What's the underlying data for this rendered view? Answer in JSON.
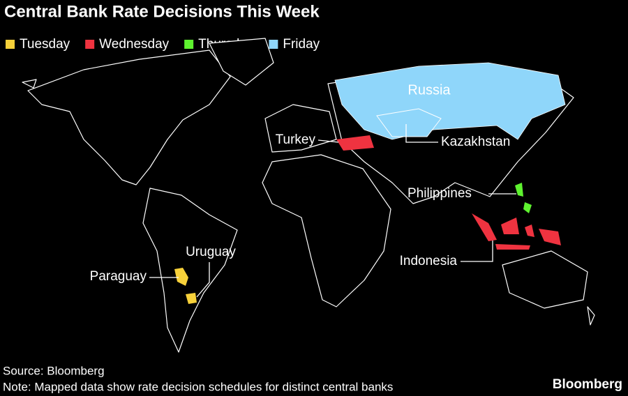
{
  "title": "Central Bank Rate Decisions This Week",
  "legend": [
    {
      "label": "Tuesday",
      "color": "#f7d13a"
    },
    {
      "label": "Wednesday",
      "color": "#ef3340"
    },
    {
      "label": "Thursday",
      "color": "#5ef22f"
    },
    {
      "label": "Friday",
      "color": "#8fd6fa"
    }
  ],
  "countries": [
    {
      "label": "Russia",
      "color": "#8fd6fa"
    },
    {
      "label": "Turkey",
      "color": "#ef3340"
    },
    {
      "label": "Kazakhstan",
      "color": "#8fd6fa"
    },
    {
      "label": "Philippines",
      "color": "#5ef22f"
    },
    {
      "label": "Indonesia",
      "color": "#ef3340"
    },
    {
      "label": "Uruguay",
      "color": "#f7d13a"
    },
    {
      "label": "Paraguay",
      "color": "#f7d13a"
    }
  ],
  "source": "Source: Bloomberg",
  "note": "Note: Mapped data show rate decision schedules for distinct central banks",
  "logo": "Bloomberg"
}
